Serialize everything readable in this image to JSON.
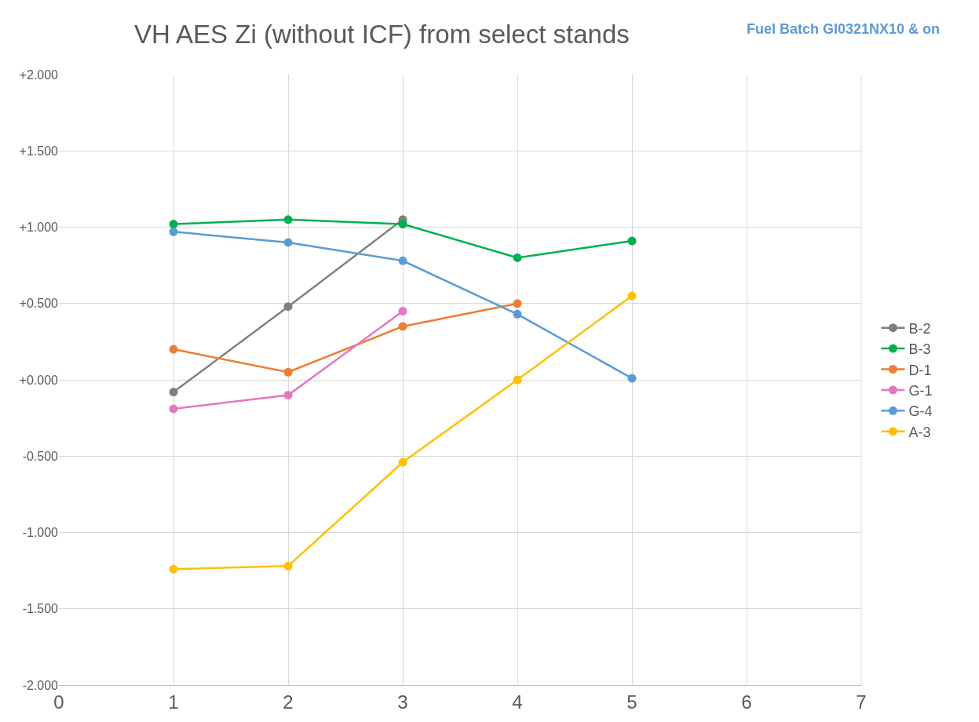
{
  "chart_data": {
    "type": "line",
    "title": "VH AES Zi (without ICF) from select stands",
    "subtitle": "Fuel Batch GI0321NX10 & on",
    "x": [
      1,
      2,
      3,
      4,
      5
    ],
    "series": [
      {
        "name": "B-2",
        "color": "#7f7f7f",
        "values": [
          -0.08,
          0.48,
          1.05,
          null,
          null
        ]
      },
      {
        "name": "B-3",
        "color": "#00b050",
        "values": [
          1.02,
          1.05,
          1.02,
          0.8,
          0.91
        ]
      },
      {
        "name": "D-1",
        "color": "#ed7d31",
        "values": [
          0.2,
          0.05,
          0.35,
          0.5,
          null
        ]
      },
      {
        "name": "G-1",
        "color": "#e377c2",
        "values": [
          -0.19,
          -0.1,
          0.45,
          null,
          null
        ]
      },
      {
        "name": "G-4",
        "color": "#5b9bd5",
        "values": [
          0.97,
          0.9,
          0.78,
          0.43,
          0.01
        ]
      },
      {
        "name": "A-3",
        "color": "#ffc000",
        "values": [
          -1.24,
          -1.22,
          -0.54,
          0.0,
          0.55
        ]
      }
    ],
    "xlim": [
      0,
      7
    ],
    "xticks": [
      0,
      1,
      2,
      3,
      4,
      5,
      6,
      7
    ],
    "ylim": [
      -2,
      2
    ],
    "yticks": [
      {
        "value": -2,
        "label": "-2.000"
      },
      {
        "value": -1.5,
        "label": "-1.500"
      },
      {
        "value": -1,
        "label": "-1.000"
      },
      {
        "value": -0.5,
        "label": "-0.500"
      },
      {
        "value": 0,
        "label": "+0.000"
      },
      {
        "value": 0.5,
        "label": "+0.500"
      },
      {
        "value": 1,
        "label": "+1.000"
      },
      {
        "value": 1.5,
        "label": "+1.500"
      },
      {
        "value": 2,
        "label": "+2.000"
      }
    ],
    "grid": true,
    "legend": "right",
    "marker": "circle",
    "line_style": "solid"
  }
}
